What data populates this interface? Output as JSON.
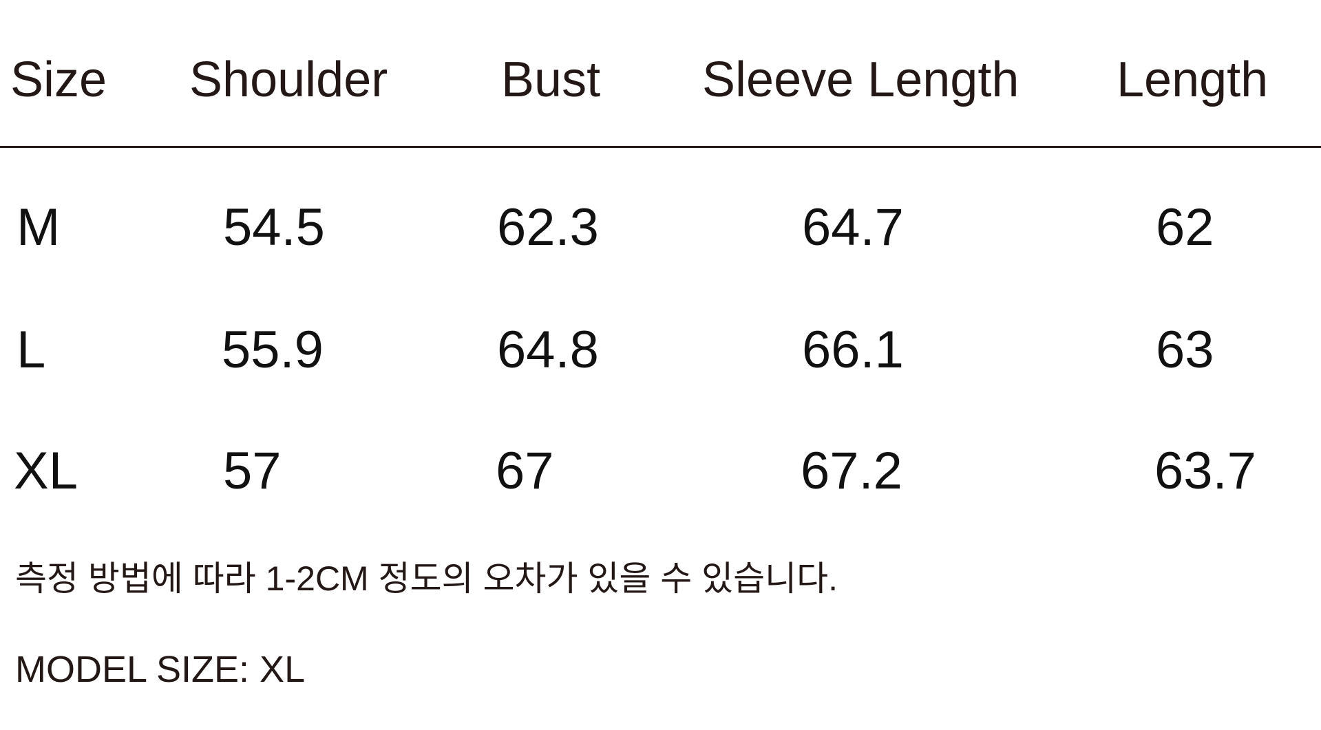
{
  "table": {
    "headers": [
      "Size",
      "Shoulder",
      "Bust",
      "Sleeve Length",
      "Length"
    ],
    "rows": [
      [
        "M",
        "54.5",
        "62.3",
        "64.7",
        "62"
      ],
      [
        "L",
        "55.9",
        "64.8",
        "66.1",
        "63"
      ],
      [
        "XL",
        "57",
        "67",
        "67.2",
        "63.7"
      ]
    ]
  },
  "note": "측정 방법에 따라 1-2CM 정도의 오차가 있을 수 있습니다.",
  "model_size": "MODEL SIZE: XL"
}
